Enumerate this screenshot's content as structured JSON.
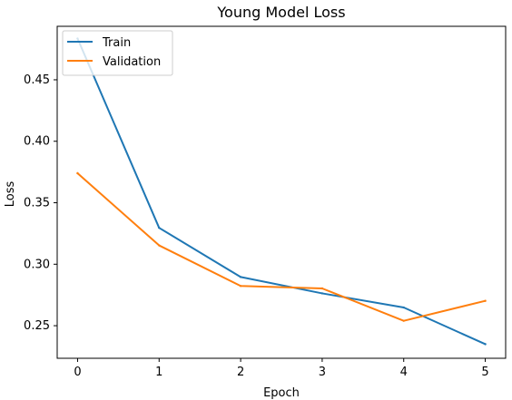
{
  "chart_data": {
    "type": "line",
    "title": "Young Model Loss",
    "xlabel": "Epoch",
    "ylabel": "Loss",
    "x": [
      0,
      1,
      2,
      3,
      4,
      5
    ],
    "xticks": [
      "0",
      "1",
      "2",
      "3",
      "4",
      "5"
    ],
    "yticks": [
      "0.25",
      "0.30",
      "0.35",
      "0.40",
      "0.45"
    ],
    "xlim": [
      -0.25,
      5.25
    ],
    "ylim": [
      0.2235,
      0.4935
    ],
    "grid": false,
    "legend": "top-left",
    "series": [
      {
        "name": "Train",
        "color": "#1f77b4",
        "values": [
          0.4835,
          0.3296,
          0.2896,
          0.2763,
          0.2648,
          0.235
        ]
      },
      {
        "name": "Validation",
        "color": "#ff7f0e",
        "values": [
          0.374,
          0.3153,
          0.2823,
          0.2803,
          0.254,
          0.2702
        ]
      }
    ]
  }
}
